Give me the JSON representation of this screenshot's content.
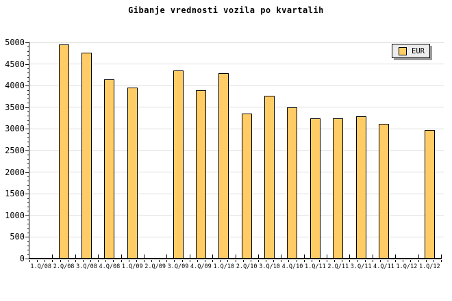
{
  "title": "Gibanje vrednosti vozila po kvartalih",
  "legend": {
    "label": "EUR",
    "position": "top-right"
  },
  "colors": {
    "background": "#FFFFFF",
    "bar_fill": "#FFCC66",
    "bar_border": "#000000",
    "gridline": "#DCDCDC",
    "axis": "#000000",
    "legend_bg": "#EDEDED",
    "legend_shadow": "#999999",
    "text": "#000000"
  },
  "chart_data": {
    "type": "bar",
    "title": "Gibanje vrednosti vozila po kvartalih",
    "xlabel": "",
    "ylabel": "",
    "categories": [
      "1.Q/08",
      "2.Q/08",
      "3.Q/08",
      "4.Q/08",
      "1.Q/09",
      "2.Q/09",
      "3.Q/09",
      "4.Q/09",
      "1.Q/10",
      "2.Q/10",
      "3.Q/10",
      "4.Q/10",
      "1.Q/11",
      "2.Q/11",
      "3.Q/11",
      "4.Q/11",
      "1.Q/12",
      "1.Q/12"
    ],
    "series": [
      {
        "name": "EUR",
        "values": [
          null,
          4960,
          4770,
          4150,
          3960,
          null,
          4350,
          3900,
          4290,
          3360,
          3760,
          3500,
          3240,
          3240,
          3290,
          3110,
          null,
          2980
        ]
      }
    ],
    "ylim": [
      0,
      5000
    ],
    "ytick_step": 500,
    "ytick_minor_step": 100,
    "ytick_labels": [
      "0",
      "500",
      "1000",
      "1500",
      "2000",
      "2500",
      "3000",
      "3500",
      "4000",
      "4500",
      "5000"
    ],
    "grid": true,
    "legend_position": "top-right",
    "notes": "bars missing (no data) for 1.Q/08, 2.Q/09 and first 1.Q/12 slot"
  }
}
